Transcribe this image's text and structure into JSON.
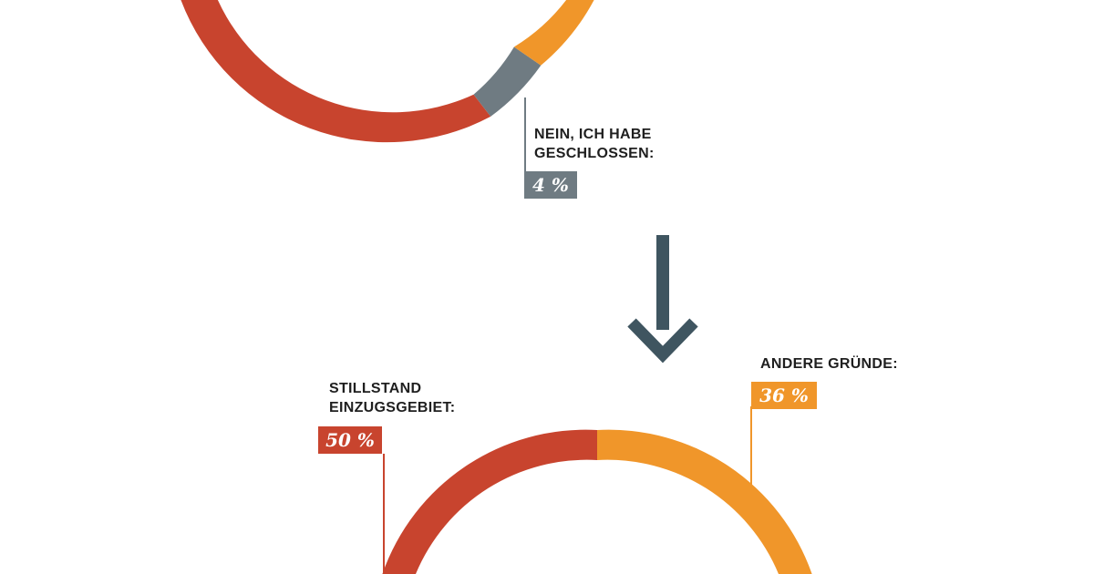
{
  "colors": {
    "red": "#c8442e",
    "orange": "#f0962a",
    "gray": "#6f7b82",
    "arrow": "#3f5560",
    "text": "#1f1f1f"
  },
  "chart_data": [
    {
      "type": "pie",
      "style": "donut",
      "cropped": "top",
      "slices": [
        {
          "label": "Nein, ich habe geschlossen",
          "value": 4,
          "color": "#6f7b82"
        }
      ],
      "annotations": [
        {
          "text": "NEIN, ICH HABE\nGESCHLOSSEN:",
          "value_label": "4 %"
        }
      ]
    },
    {
      "type": "pie",
      "style": "donut",
      "cropped": "bottom",
      "slices": [
        {
          "label": "Stillstand Einzugsgebiet",
          "value": 50,
          "color": "#c8442e"
        },
        {
          "label": "Andere Gründe",
          "value": 36,
          "color": "#f0962a"
        }
      ],
      "annotations": [
        {
          "text": "STILLSTAND\nEINZUGSGEBIET:",
          "value_label": "50 %"
        },
        {
          "text": "ANDERE GRÜNDE:",
          "value_label": "36 %"
        }
      ]
    }
  ],
  "labels": {
    "top_gray_line1": "NEIN, ICH HABE",
    "top_gray_line2": "GESCHLOSSEN:",
    "top_gray_value": "4 %",
    "bottom_red_line1": "STILLSTAND",
    "bottom_red_line2": "EINZUGSGEBIET:",
    "bottom_red_value": "50 %",
    "bottom_orange_line1": "ANDERE GRÜNDE:",
    "bottom_orange_value": "36 %"
  },
  "icons": {
    "arrow": "arrow-down-icon"
  }
}
